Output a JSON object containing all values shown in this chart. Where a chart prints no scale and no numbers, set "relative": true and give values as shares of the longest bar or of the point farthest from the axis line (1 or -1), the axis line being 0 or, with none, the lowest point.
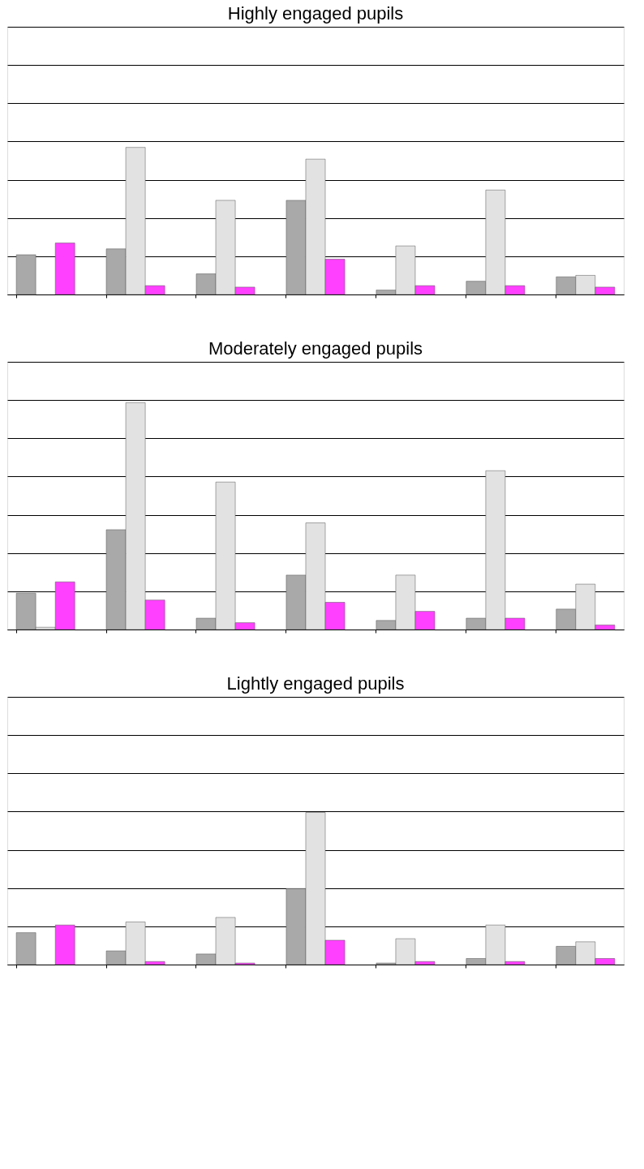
{
  "chart_data": [
    {
      "type": "bar",
      "title": "Highly engaged pupils",
      "relative": true,
      "grid": "y",
      "legend": false,
      "categories": [
        null,
        null,
        null,
        null,
        null,
        null,
        null
      ],
      "series": [
        {
          "color": "#a9a9a9",
          "values": [
            0.27,
            0.31,
            0.14,
            0.64,
            0.03,
            0.09,
            0.12
          ]
        },
        {
          "color": "#e2e2e2",
          "values": [
            null,
            1,
            0.64,
            0.92,
            0.33,
            0.71,
            0.13
          ]
        },
        {
          "color": "#ff40ff",
          "values": [
            0.35,
            0.06,
            0.05,
            0.24,
            0.06,
            0.06,
            0.05
          ]
        }
      ]
    },
    {
      "type": "bar",
      "title": "Moderately engaged pupils",
      "relative": true,
      "grid": "y",
      "legend": false,
      "categories": [
        null,
        null,
        null,
        null,
        null,
        null,
        null
      ],
      "series": [
        {
          "color": "#a9a9a9",
          "values": [
            0.16,
            0.44,
            0.05,
            0.24,
            0.04,
            0.05,
            0.09
          ]
        },
        {
          "color": "#e2e2e2",
          "values": [
            0.01,
            1,
            0.65,
            0.47,
            0.24,
            0.7,
            0.2
          ]
        },
        {
          "color": "#ff40ff",
          "values": [
            0.21,
            0.13,
            0.03,
            0.12,
            0.08,
            0.05,
            0.02
          ]
        }
      ]
    },
    {
      "type": "bar",
      "title": "Lightly engaged pupils",
      "relative": true,
      "grid": "y",
      "legend": false,
      "categories": [
        null,
        null,
        null,
        null,
        null,
        null,
        null
      ],
      "series": [
        {
          "color": "#a9a9a9",
          "values": [
            0.21,
            0.09,
            0.07,
            0.5,
            0.01,
            0.04,
            0.12
          ]
        },
        {
          "color": "#e2e2e2",
          "values": [
            null,
            0.28,
            0.31,
            1,
            0.17,
            0.26,
            0.15
          ]
        },
        {
          "color": "#ff40ff",
          "values": [
            0.26,
            0.02,
            0.01,
            0.16,
            0.02,
            0.02,
            0.04
          ]
        }
      ]
    }
  ]
}
